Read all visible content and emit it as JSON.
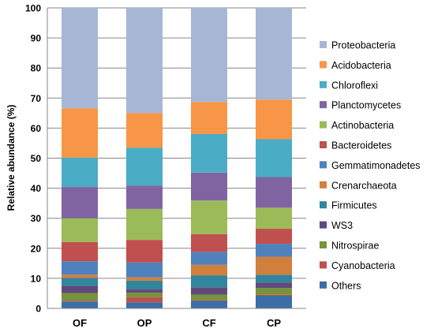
{
  "chart_data": {
    "type": "bar",
    "stacked": true,
    "ylabel": "Relative abundance (%)",
    "ylim": [
      0,
      100
    ],
    "yticks": [
      0,
      10,
      20,
      30,
      40,
      50,
      60,
      70,
      80,
      90,
      100
    ],
    "grid": "horizontal",
    "legend_position": "right",
    "categories": [
      "OF",
      "OP",
      "CF",
      "CP"
    ],
    "series": [
      {
        "name": "Others",
        "color": "#3A6EA5",
        "values": [
          2.3,
          2.0,
          2.5,
          4.2
        ]
      },
      {
        "name": "Cyanobacteria",
        "color": "#C0504D",
        "values": [
          0.3,
          1.7,
          0.3,
          0.3
        ]
      },
      {
        "name": "Nitrospirae",
        "color": "#77933C",
        "values": [
          2.5,
          1.5,
          1.8,
          2.3
        ]
      },
      {
        "name": "WS3",
        "color": "#604A7B",
        "values": [
          2.4,
          1.2,
          2.4,
          1.8
        ]
      },
      {
        "name": "Firmicutes",
        "color": "#31859C",
        "values": [
          2.6,
          2.8,
          4.0,
          2.6
        ]
      },
      {
        "name": "Crenarchaeota",
        "color": "#D07F3C",
        "values": [
          1.1,
          1.1,
          3.5,
          6.0
        ]
      },
      {
        "name": "Gemmatimonadetes",
        "color": "#4F81BD",
        "values": [
          4.5,
          5.0,
          4.3,
          4.3
        ]
      },
      {
        "name": "Bacteroidetes",
        "color": "#C0504D",
        "values": [
          6.4,
          7.5,
          5.9,
          5.0
        ]
      },
      {
        "name": "Actinobacteria",
        "color": "#9BBB59",
        "values": [
          7.9,
          10.3,
          11.2,
          7.0
        ]
      },
      {
        "name": "Planctomycetes",
        "color": "#8064A2",
        "values": [
          10.4,
          7.8,
          9.3,
          10.2
        ]
      },
      {
        "name": "Chloroflexi",
        "color": "#4BACC6",
        "values": [
          9.8,
          12.6,
          12.8,
          12.6
        ]
      },
      {
        "name": "Acidobacteria",
        "color": "#F79646",
        "values": [
          16.4,
          11.5,
          10.7,
          13.2
        ]
      },
      {
        "name": "Proteobacteria",
        "color": "#A6B7D6",
        "values": [
          33.4,
          35.0,
          31.3,
          30.5
        ]
      }
    ],
    "legend_order": [
      "Proteobacteria",
      "Acidobacteria",
      "Chloroflexi",
      "Planctomycetes",
      "Actinobacteria",
      "Bacteroidetes",
      "Gemmatimonadetes",
      "Crenarchaeota",
      "Firmicutes",
      "WS3",
      "Nitrospirae",
      "Cyanobacteria",
      "Others"
    ]
  }
}
